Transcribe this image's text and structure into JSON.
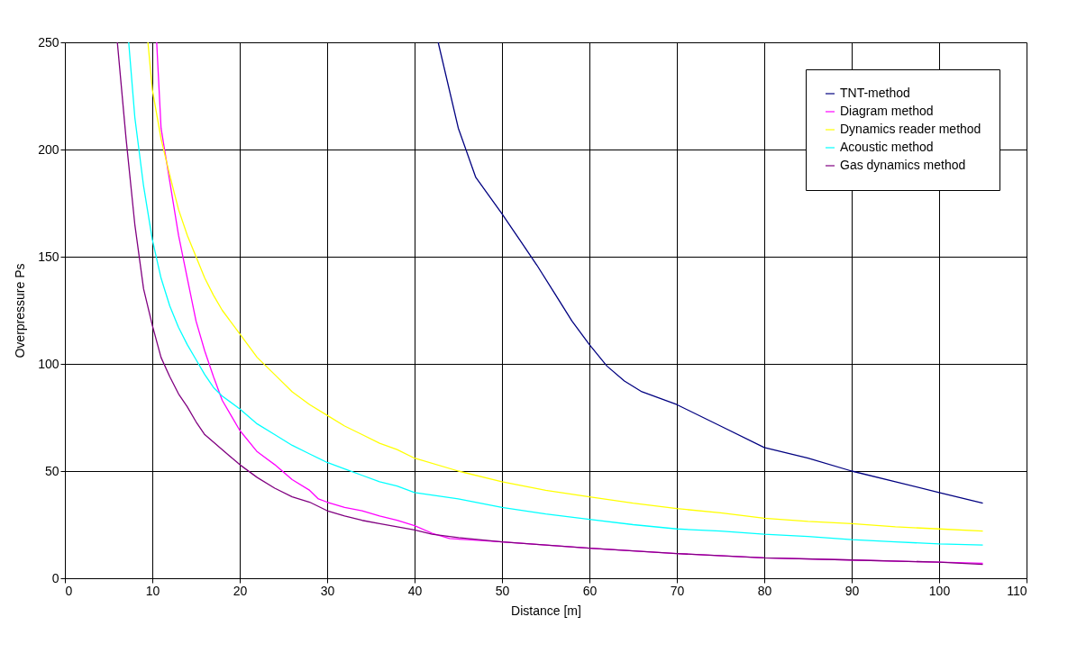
{
  "chart_data": {
    "type": "line",
    "xlabel": "Distance [m]",
    "ylabel": "Overpressure Ps",
    "xlim": [
      0,
      110
    ],
    "xticks": [
      0,
      10,
      20,
      30,
      40,
      50,
      60,
      70,
      80,
      90,
      100,
      110
    ],
    "ylim": [
      0,
      250
    ],
    "yticks": [
      0,
      50,
      100,
      150,
      200,
      250
    ],
    "grid": true,
    "legend": "top right",
    "marker": "none",
    "line_style": "solid",
    "series": [
      {
        "name": "TNT-method",
        "color": "#000080",
        "x": [
          42.7,
          45,
          47,
          50,
          52,
          54,
          56,
          58,
          60,
          62,
          64,
          66,
          70,
          75,
          80,
          85,
          90,
          95,
          100,
          105
        ],
        "values": [
          250,
          210,
          187,
          170,
          158,
          146,
          133,
          120,
          109,
          99,
          92,
          87,
          81,
          71,
          61,
          56,
          50,
          45,
          40,
          35
        ]
      },
      {
        "name": "Diagram method",
        "color": "#ff00ff",
        "x": [
          10.5,
          11,
          12,
          13,
          14,
          15,
          16,
          17,
          18,
          19,
          20,
          22,
          24,
          26,
          28,
          29,
          30,
          32,
          34,
          36,
          38,
          40,
          42,
          44,
          46,
          50,
          55,
          60,
          70,
          80,
          90,
          100,
          105
        ],
        "values": [
          250,
          210,
          185,
          160,
          140,
          120,
          106,
          94,
          83,
          76,
          69,
          59,
          53,
          46,
          41,
          37,
          35.5,
          33,
          31.5,
          29,
          27,
          24.5,
          21,
          18.5,
          18,
          17,
          15.5,
          14,
          11.5,
          9.5,
          8.5,
          7.5,
          7
        ]
      },
      {
        "name": "Dynamics reader method",
        "color": "#ffff00",
        "x": [
          9.5,
          10,
          11,
          12,
          13,
          14,
          15,
          16,
          17,
          18,
          20,
          22,
          24,
          26,
          28,
          30,
          32,
          34,
          36,
          38,
          40,
          45,
          50,
          55,
          60,
          65,
          70,
          75,
          80,
          85,
          90,
          95,
          100,
          105
        ],
        "values": [
          250,
          228,
          205,
          188,
          172,
          160,
          150,
          140,
          132,
          125,
          114,
          103,
          95,
          87,
          81,
          76,
          71,
          67,
          63,
          60,
          56,
          50,
          45,
          41,
          38,
          35,
          32.5,
          30.5,
          28,
          26.5,
          25.5,
          24,
          23,
          22
        ]
      },
      {
        "name": "Acoustic method",
        "color": "#00ffff",
        "x": [
          7.3,
          8,
          9,
          10,
          11,
          12,
          13,
          14,
          15,
          16,
          17,
          18,
          20,
          22,
          24,
          26,
          28,
          30,
          32,
          34,
          36,
          38,
          40,
          45,
          50,
          55,
          60,
          65,
          70,
          75,
          80,
          85,
          90,
          95,
          100,
          105
        ],
        "values": [
          250,
          215,
          183,
          158,
          140,
          127,
          117,
          109,
          102,
          95,
          89,
          85,
          79,
          72,
          67,
          62,
          58,
          54,
          51,
          48,
          45,
          43,
          40,
          37,
          33,
          30,
          27.5,
          25,
          23,
          22,
          20.5,
          19.5,
          18,
          17,
          16,
          15.5
        ]
      },
      {
        "name": "Gas dynamics method",
        "color": "#800080",
        "x": [
          6,
          7,
          8,
          9,
          10,
          11,
          12,
          13,
          14,
          15,
          16,
          18,
          20,
          22,
          24,
          26,
          28,
          30,
          32,
          34,
          36,
          38,
          40,
          42,
          45,
          50,
          55,
          60,
          70,
          80,
          90,
          100,
          105
        ],
        "values": [
          250,
          205,
          165,
          135,
          118,
          103,
          94,
          86,
          80,
          73,
          67,
          60,
          53,
          47,
          42,
          38,
          35.5,
          31.5,
          29,
          27,
          25.5,
          24,
          22.5,
          20.5,
          19,
          17,
          15.5,
          14,
          11.5,
          9.5,
          8.5,
          7.5,
          6.5
        ]
      }
    ]
  }
}
